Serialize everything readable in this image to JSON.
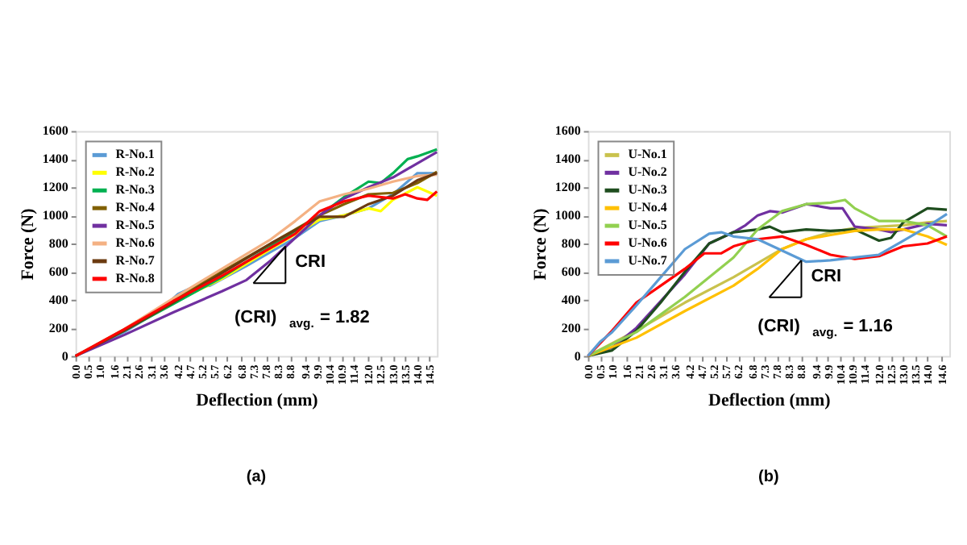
{
  "chart_data": [
    {
      "type": "line",
      "xlabel": "Deflection (mm)",
      "ylabel": "Force (N)",
      "grid": false,
      "legend": "top left",
      "marker": "none",
      "line_style": "solid",
      "xlim": [
        0,
        14.8
      ],
      "ylim": [
        0,
        1600
      ],
      "xticks": [
        {
          "value": 0,
          "label": "0.0"
        },
        0.5,
        {
          "value": 1,
          "label": "1.0"
        },
        1.6,
        2.1,
        2.6,
        3.1,
        3.6,
        4.2,
        4.7,
        5.2,
        5.7,
        6.2,
        6.8,
        7.3,
        7.8,
        8.3,
        8.8,
        9.4,
        9.9,
        10.4,
        10.9,
        11.4,
        {
          "value": 12,
          "label": "12.0"
        },
        12.5,
        {
          "value": 13,
          "label": "13.0"
        },
        13.5,
        {
          "value": 14,
          "label": "14.0"
        },
        14.5
      ],
      "yticks": [
        0,
        200,
        400,
        600,
        800,
        1000,
        1200,
        1400,
        1600
      ],
      "annotations": [
        {
          "text": "CRI",
          "x": 8.6,
          "y": 780
        },
        "(CRI)$_{avg.}$= 1.82",
        "(a)"
      ],
      "series": [
        {
          "name": "R-No.1",
          "color": "#5b9bd5",
          "x": [
            0,
            2,
            3.5,
            4.2,
            4.8,
            5.5,
            7,
            8,
            9,
            10,
            11,
            12,
            13,
            14,
            14.8
          ],
          "values": [
            0,
            170,
            330,
            440,
            490,
            500,
            640,
            740,
            840,
            960,
            1000,
            1050,
            1150,
            1300,
            1300
          ]
        },
        {
          "name": "R-No.2",
          "color": "#ffff00",
          "x": [
            4,
            6,
            8,
            10,
            11,
            12,
            12.5,
            13,
            14,
            14.8
          ],
          "values": [
            380,
            550,
            760,
            970,
            1000,
            1050,
            1030,
            1110,
            1200,
            1140
          ]
        },
        {
          "name": "R-No.3",
          "color": "#00b050",
          "x": [
            0,
            2,
            4,
            6,
            8,
            10,
            11,
            12,
            12.5,
            13,
            13.6,
            14,
            14.8
          ],
          "values": [
            0,
            180,
            370,
            560,
            780,
            1000,
            1130,
            1240,
            1230,
            1300,
            1400,
            1420,
            1470
          ]
        },
        {
          "name": "R-No.4",
          "color": "#806000",
          "x": [
            0,
            2,
            4,
            6,
            8,
            10,
            11,
            12,
            13,
            14,
            14.8
          ],
          "values": [
            0,
            190,
            400,
            600,
            800,
            1000,
            1080,
            1150,
            1160,
            1230,
            1310
          ]
        },
        {
          "name": "R-No.5",
          "color": "#7030a0",
          "x": [
            0,
            2,
            4,
            6,
            7,
            8,
            9,
            10,
            11,
            12,
            13,
            14,
            14.8
          ],
          "values": [
            0,
            150,
            310,
            460,
            540,
            680,
            840,
            1000,
            1120,
            1200,
            1270,
            1370,
            1450
          ]
        },
        {
          "name": "R-No.6",
          "color": "#f4b183",
          "x": [
            0,
            2,
            4,
            6,
            8,
            9,
            10,
            11,
            12,
            13,
            14,
            14.8
          ],
          "values": [
            0,
            190,
            410,
            620,
            830,
            960,
            1100,
            1150,
            1190,
            1240,
            1280,
            1290
          ]
        },
        {
          "name": "R-No.7",
          "color": "#6b3a10",
          "x": [
            0,
            2,
            4,
            6,
            8,
            10,
            11,
            12,
            13,
            14,
            14.8
          ],
          "values": [
            0,
            180,
            380,
            590,
            800,
            990,
            990,
            1080,
            1140,
            1250,
            1300
          ]
        },
        {
          "name": "R-No.8",
          "color": "#ff0000",
          "x": [
            0,
            2,
            4,
            6,
            8,
            9,
            10,
            11,
            12,
            13,
            13.5,
            14,
            14.4,
            14.8
          ],
          "values": [
            0,
            190,
            390,
            570,
            770,
            870,
            1030,
            1100,
            1140,
            1120,
            1150,
            1120,
            1110,
            1170
          ]
        }
      ]
    },
    {
      "type": "line",
      "xlabel": "Deflection (mm)",
      "ylabel": "Force (N)",
      "grid": false,
      "legend": "top left",
      "marker": "none",
      "line_style": "solid",
      "xlim": [
        0,
        14.9
      ],
      "ylim": [
        0,
        1600
      ],
      "xticks": [
        {
          "value": 0,
          "label": "0.0"
        },
        0.5,
        {
          "value": 1,
          "label": "1.0"
        },
        1.6,
        2.1,
        2.6,
        3.1,
        3.6,
        4.2,
        4.7,
        5.2,
        5.7,
        6.2,
        6.8,
        7.3,
        7.8,
        8.3,
        8.8,
        9.4,
        9.9,
        10.4,
        10.9,
        11.4,
        {
          "value": 12,
          "label": "12.0"
        },
        12.5,
        {
          "value": 13,
          "label": "13.0"
        },
        13.5,
        {
          "value": 14,
          "label": "14.0"
        },
        14.6
      ],
      "yticks": [
        0,
        200,
        400,
        600,
        800,
        1000,
        1200,
        1400,
        1600
      ],
      "annotations": [
        {
          "text": "CRI",
          "x": 8.8,
          "y": 680
        },
        "(CRI)$_{avg.}$= 1.16",
        "(b)"
      ],
      "series": [
        {
          "name": "U-No.1",
          "color": "#c9c24d",
          "x": [
            0,
            2,
            4,
            6,
            8,
            9,
            10,
            11,
            12,
            13,
            14,
            14.8
          ],
          "values": [
            0,
            180,
            380,
            560,
            760,
            830,
            880,
            910,
            920,
            930,
            950,
            960
          ]
        },
        {
          "name": "U-No.2",
          "color": "#7030a0",
          "x": [
            0,
            1,
            2,
            3,
            4,
            5,
            6,
            6.5,
            7,
            7.5,
            8,
            9,
            10,
            10.5,
            11,
            12,
            12.5,
            13,
            14,
            14.8
          ],
          "values": [
            0,
            60,
            200,
            390,
            580,
            800,
            880,
            930,
            1000,
            1030,
            1020,
            1080,
            1050,
            1050,
            920,
            900,
            880,
            900,
            940,
            930
          ]
        },
        {
          "name": "U-No.3",
          "color": "#1e4d1e",
          "x": [
            0,
            1,
            2,
            3,
            4,
            5,
            6,
            7,
            7.5,
            8,
            9,
            10,
            11,
            12,
            12.5,
            13,
            14,
            14.8
          ],
          "values": [
            0,
            40,
            180,
            380,
            600,
            800,
            880,
            900,
            920,
            880,
            900,
            890,
            900,
            820,
            840,
            950,
            1050,
            1040
          ]
        },
        {
          "name": "U-No.4",
          "color": "#ffc000",
          "x": [
            0,
            2,
            4,
            6,
            7,
            8,
            9,
            10,
            11,
            12,
            13,
            14,
            14.8
          ],
          "values": [
            0,
            130,
            320,
            500,
            620,
            760,
            830,
            860,
            890,
            900,
            900,
            850,
            790
          ]
        },
        {
          "name": "U-No.5",
          "color": "#92d050",
          "x": [
            0,
            2,
            4,
            6,
            7,
            8,
            9,
            10,
            10.6,
            11,
            12,
            13,
            14,
            14.8
          ],
          "values": [
            0,
            170,
            420,
            700,
            900,
            1030,
            1080,
            1090,
            1110,
            1050,
            960,
            960,
            930,
            850
          ]
        },
        {
          "name": "U-No.6",
          "color": "#ff0000",
          "x": [
            0,
            1,
            2,
            3,
            4,
            4.8,
            5.5,
            6,
            7,
            8,
            9,
            10,
            11,
            12,
            13,
            14,
            14.8
          ],
          "values": [
            0,
            180,
            380,
            500,
            620,
            730,
            730,
            780,
            830,
            850,
            790,
            720,
            690,
            710,
            780,
            800,
            850
          ]
        },
        {
          "name": "U-No.7",
          "color": "#5b9bd5",
          "x": [
            0,
            0.5,
            1,
            2,
            3,
            4,
            5,
            5.5,
            6,
            7,
            8,
            9,
            10,
            11,
            12,
            13,
            14,
            14.8
          ],
          "values": [
            0,
            100,
            170,
            360,
            560,
            760,
            870,
            880,
            850,
            830,
            750,
            670,
            680,
            700,
            720,
            820,
            920,
            1010
          ]
        }
      ]
    }
  ]
}
